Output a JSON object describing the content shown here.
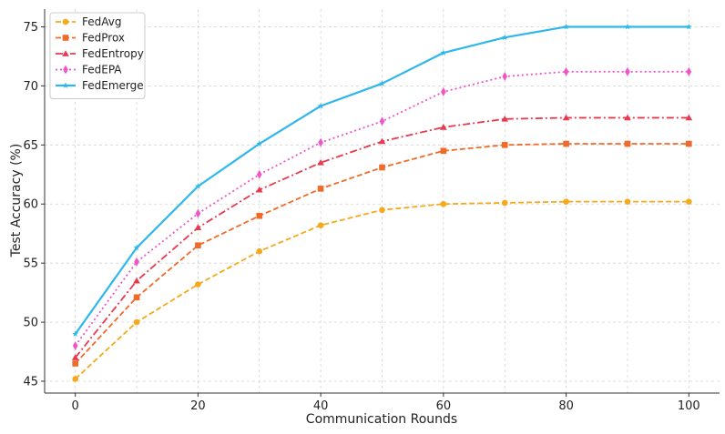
{
  "chart_data": {
    "type": "line",
    "title": "",
    "xlabel": "Communication Rounds",
    "ylabel": "Test Accuracy (%)",
    "xlim": [
      -5,
      105
    ],
    "ylim": [
      44,
      76.5
    ],
    "xticks": [
      0,
      20,
      40,
      60,
      80,
      100
    ],
    "yticks": [
      45,
      50,
      55,
      60,
      65,
      70,
      75
    ],
    "x": [
      0,
      10,
      20,
      30,
      40,
      50,
      60,
      70,
      80,
      90,
      100
    ],
    "grid": true,
    "legend_position": "top-left",
    "series": [
      {
        "name": "FedAvg",
        "color": "#F5A91B",
        "dash": "dashed",
        "marker": "circle",
        "values": [
          45.2,
          50.0,
          53.2,
          56.0,
          58.2,
          59.5,
          60.0,
          60.1,
          60.2,
          60.2,
          60.2
        ]
      },
      {
        "name": "FedProx",
        "color": "#F06A2A",
        "dash": "dashed",
        "marker": "square",
        "values": [
          46.5,
          52.1,
          56.5,
          59.0,
          61.3,
          63.1,
          64.5,
          65.0,
          65.1,
          65.1,
          65.1
        ]
      },
      {
        "name": "FedEntropy",
        "color": "#E8394F",
        "dash": "dashdot",
        "marker": "triangle",
        "values": [
          47.0,
          53.5,
          58.0,
          61.2,
          63.5,
          65.3,
          66.5,
          67.2,
          67.3,
          67.3,
          67.3
        ]
      },
      {
        "name": "FedEPA",
        "color": "#EE55C8",
        "dash": "dotted",
        "marker": "diamond",
        "values": [
          48.0,
          55.1,
          59.2,
          62.5,
          65.2,
          67.0,
          69.5,
          70.8,
          71.2,
          71.2,
          71.2
        ]
      },
      {
        "name": "FedEmerge",
        "color": "#2EB7EC",
        "dash": "solid",
        "marker": "star",
        "values": [
          49.0,
          56.3,
          61.5,
          65.1,
          68.3,
          70.2,
          72.8,
          74.1,
          75.0,
          75.0,
          75.0
        ]
      }
    ]
  }
}
